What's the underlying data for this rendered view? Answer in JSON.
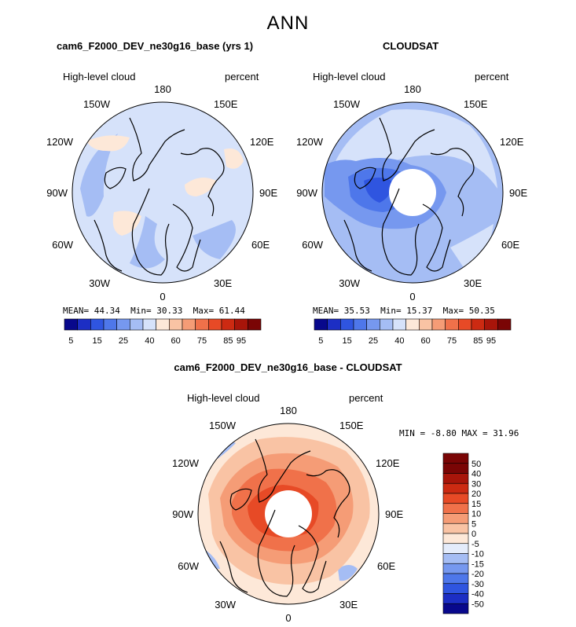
{
  "season": "ANN",
  "panels": [
    {
      "title": "cam6_F2000_DEV_ne30g16_base (yrs 1)",
      "variable": "High-level cloud",
      "units": "percent",
      "stats": {
        "mean": "44.34",
        "min": "30.33",
        "max": "61.44"
      },
      "stats_labels": {
        "mean": "MEAN=",
        "min": "Min=",
        "max": "Max="
      }
    },
    {
      "title": "CLOUDSAT",
      "variable": "High-level cloud",
      "units": "percent",
      "stats": {
        "mean": "35.53",
        "min": "15.37",
        "max": "50.35"
      },
      "stats_labels": {
        "mean": "MEAN=",
        "min": "Min=",
        "max": "Max="
      }
    },
    {
      "title": "cam6_F2000_DEV_ne30g16_base - CLOUDSAT",
      "variable": "High-level cloud",
      "units": "percent",
      "stats": {
        "min": "-8.80",
        "max": "31.96"
      },
      "stats_labels": {
        "min": "MIN =",
        "max": "MAX ="
      }
    }
  ],
  "longitude_labels": [
    "180",
    "150E",
    "120E",
    "90E",
    "60E",
    "30E",
    "0",
    "30W",
    "60W",
    "90W",
    "120W",
    "150W"
  ],
  "colorbar_top": {
    "ticks": [
      "5",
      "15",
      "25",
      "40",
      "60",
      "75",
      "85",
      "95"
    ],
    "colors": [
      "#08088c",
      "#1c2ec4",
      "#2f55e0",
      "#4e77ea",
      "#7698ef",
      "#a5bdf4",
      "#d6e2fa",
      "#fde8d8",
      "#f9c3a4",
      "#f59c76",
      "#f0714a",
      "#e74a26",
      "#cc2a12",
      "#a8150a",
      "#7a0505"
    ]
  },
  "colorbar_diff": {
    "ticks": [
      "50",
      "40",
      "30",
      "20",
      "15",
      "10",
      "5",
      "0",
      "-5",
      "-10",
      "-15",
      "-20",
      "-30",
      "-40",
      "-50"
    ],
    "colors": [
      "#7a0505",
      "#a8150a",
      "#cc2a12",
      "#e74a26",
      "#f0714a",
      "#f59c76",
      "#f9c3a4",
      "#fde8d8",
      "#e4ecfb",
      "#a5bdf4",
      "#7698ef",
      "#4e77ea",
      "#2f55e0",
      "#1c2ec4",
      "#08088c"
    ]
  },
  "colors": {
    "land_outline": "#000000",
    "missing_data": "#ffffff"
  }
}
